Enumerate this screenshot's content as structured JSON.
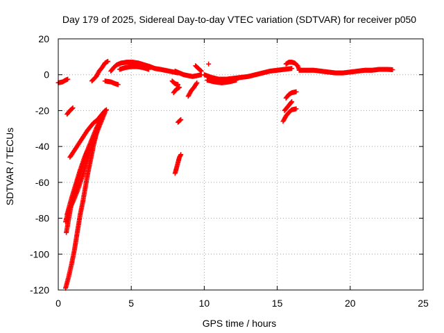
{
  "chart_data": {
    "type": "scatter",
    "title": "Day 179 of 2025, Sidereal Day-to-day VTEC variation (SDTVAR) for receiver p050",
    "xlabel": "GPS time / hours",
    "ylabel": "SDTVAR / TECUs",
    "xlim": [
      0,
      25
    ],
    "ylim": [
      -120,
      20
    ],
    "xticks": [
      0,
      5,
      10,
      15,
      20,
      25
    ],
    "yticks": [
      -120,
      -100,
      -80,
      -60,
      -40,
      -20,
      0,
      20
    ],
    "grid": true,
    "marker": "+",
    "color": "#ff0000",
    "segments": [
      {
        "name": "left-start",
        "points": [
          [
            0.0,
            -4.5
          ],
          [
            0.3,
            -4
          ],
          [
            0.5,
            -3
          ],
          [
            0.65,
            -2.5
          ]
        ]
      },
      {
        "name": "arc-upper",
        "points": [
          [
            0.6,
            -22
          ],
          [
            0.8,
            -20
          ],
          [
            1.0,
            -18.5
          ]
        ]
      },
      {
        "name": "arc-mid",
        "points": [
          [
            0.8,
            -46
          ],
          [
            1.2,
            -41
          ],
          [
            1.6,
            -36
          ],
          [
            2.0,
            -31
          ],
          [
            2.4,
            -27
          ],
          [
            2.7,
            -25
          ],
          [
            3.0,
            -22
          ],
          [
            3.3,
            -19.5
          ]
        ]
      },
      {
        "name": "arc-steep-a",
        "points": [
          [
            0.55,
            -88
          ],
          [
            0.9,
            -72
          ],
          [
            1.3,
            -60
          ],
          [
            1.7,
            -50
          ],
          [
            2.0,
            -42
          ],
          [
            2.3,
            -36
          ],
          [
            2.6,
            -30
          ],
          [
            2.9,
            -25
          ],
          [
            3.1,
            -21
          ]
        ]
      },
      {
        "name": "arc-steep-b",
        "points": [
          [
            0.5,
            -82
          ],
          [
            0.7,
            -76
          ],
          [
            1.0,
            -71
          ],
          [
            1.3,
            -65
          ],
          [
            1.6,
            -58
          ],
          [
            1.9,
            -50
          ],
          [
            2.1,
            -44
          ],
          [
            2.4,
            -38
          ],
          [
            2.7,
            -31
          ],
          [
            3.0,
            -25
          ],
          [
            3.2,
            -21
          ]
        ]
      },
      {
        "name": "arc-steep-c",
        "points": [
          [
            0.6,
            -78
          ],
          [
            0.9,
            -69
          ],
          [
            1.2,
            -61
          ],
          [
            1.5,
            -53
          ],
          [
            1.8,
            -46
          ],
          [
            1.95,
            -43
          ]
        ]
      },
      {
        "name": "arc-bottom",
        "points": [
          [
            0.5,
            -119
          ],
          [
            0.7,
            -113
          ],
          [
            0.9,
            -106
          ],
          [
            1.1,
            -98
          ],
          [
            1.3,
            -88
          ],
          [
            1.5,
            -78
          ],
          [
            1.7,
            -70
          ],
          [
            1.85,
            -63
          ],
          [
            2.0,
            -56
          ],
          [
            2.2,
            -48
          ],
          [
            2.4,
            -40
          ],
          [
            2.6,
            -33
          ],
          [
            2.8,
            -27
          ],
          [
            3.0,
            -22
          ],
          [
            3.2,
            -20
          ]
        ]
      },
      {
        "name": "arc-rise",
        "points": [
          [
            2.3,
            -3.5
          ],
          [
            2.6,
            -1
          ],
          [
            2.8,
            2
          ],
          [
            3.0,
            4
          ],
          [
            3.2,
            6.5
          ],
          [
            3.4,
            7.5
          ]
        ]
      },
      {
        "name": "dip-small",
        "points": [
          [
            3.2,
            -3.5
          ],
          [
            3.6,
            -4
          ],
          [
            3.9,
            -5
          ],
          [
            4.1,
            -5.5
          ]
        ]
      },
      {
        "name": "hump",
        "points": [
          [
            3.6,
            2
          ],
          [
            3.8,
            4
          ],
          [
            4.0,
            5.5
          ],
          [
            4.3,
            6.5
          ],
          [
            4.7,
            7
          ],
          [
            5.1,
            7
          ],
          [
            5.5,
            6.5
          ],
          [
            5.9,
            5.5
          ],
          [
            6.3,
            4.5
          ],
          [
            6.6,
            3.5
          ],
          [
            7.0,
            3
          ],
          [
            7.3,
            2.5
          ],
          [
            7.6,
            2
          ],
          [
            7.9,
            1.5
          ],
          [
            8.2,
            1
          ]
        ]
      },
      {
        "name": "hump-lower",
        "points": [
          [
            4.2,
            3
          ],
          [
            4.6,
            4
          ],
          [
            5.0,
            4.5
          ],
          [
            5.4,
            4.5
          ],
          [
            5.8,
            4
          ],
          [
            6.2,
            3
          ]
        ]
      },
      {
        "name": "mid-flat",
        "points": [
          [
            8.0,
            2
          ],
          [
            8.3,
            1
          ],
          [
            8.6,
            0
          ],
          [
            8.9,
            -0.5
          ],
          [
            9.2,
            -1
          ],
          [
            9.5,
            -0.5
          ],
          [
            9.8,
            0
          ]
        ]
      },
      {
        "name": "short-drop-a",
        "points": [
          [
            7.8,
            -3.5
          ],
          [
            8.0,
            -5
          ],
          [
            8.2,
            -5.5
          ]
        ]
      },
      {
        "name": "short-drop-b",
        "points": [
          [
            7.9,
            -10
          ],
          [
            8.1,
            -8
          ],
          [
            8.3,
            -7
          ]
        ]
      },
      {
        "name": "short-c",
        "points": [
          [
            8.2,
            -26.5
          ],
          [
            8.4,
            -25
          ]
        ]
      },
      {
        "name": "steep-mid",
        "points": [
          [
            8.0,
            -55
          ],
          [
            8.1,
            -52
          ],
          [
            8.2,
            -49
          ],
          [
            8.3,
            -46
          ],
          [
            8.4,
            -44.5
          ]
        ]
      },
      {
        "name": "rise-9",
        "points": [
          [
            8.9,
            -12
          ],
          [
            9.1,
            -9
          ],
          [
            9.3,
            -7
          ],
          [
            9.5,
            -4.5
          ]
        ]
      },
      {
        "name": "spike-9",
        "points": [
          [
            9.4,
            5
          ],
          [
            9.6,
            3.5
          ],
          [
            9.8,
            2
          ]
        ]
      },
      {
        "name": "dot-10",
        "points": [
          [
            10.3,
            6
          ]
        ]
      },
      {
        "name": "main-band",
        "points": [
          [
            10.0,
            0
          ],
          [
            10.5,
            -1.5
          ],
          [
            11.0,
            -2.5
          ],
          [
            11.5,
            -2.5
          ],
          [
            12.0,
            -2
          ],
          [
            12.5,
            -1.5
          ],
          [
            13.0,
            -1
          ],
          [
            13.5,
            0
          ],
          [
            14.0,
            1
          ],
          [
            14.5,
            2
          ],
          [
            15.0,
            2.5
          ],
          [
            15.5,
            3
          ],
          [
            16.0,
            3.5
          ]
        ]
      },
      {
        "name": "main-band-low",
        "points": [
          [
            10.2,
            -3
          ],
          [
            10.7,
            -4
          ],
          [
            11.2,
            -4.5
          ],
          [
            11.7,
            -4
          ],
          [
            12.2,
            -3
          ]
        ]
      },
      {
        "name": "block-16",
        "points": [
          [
            15.6,
            6
          ],
          [
            15.8,
            7
          ],
          [
            16.0,
            7
          ],
          [
            16.2,
            6.5
          ],
          [
            16.4,
            5
          ],
          [
            16.5,
            3
          ]
        ]
      },
      {
        "name": "drop-16a",
        "points": [
          [
            15.6,
            -13
          ],
          [
            15.8,
            -11
          ],
          [
            16.0,
            -10
          ],
          [
            16.3,
            -9.5
          ]
        ]
      },
      {
        "name": "drop-16b",
        "points": [
          [
            15.4,
            -26
          ],
          [
            15.6,
            -23
          ],
          [
            15.8,
            -21
          ],
          [
            16.0,
            -19.5
          ],
          [
            16.3,
            -19
          ]
        ]
      },
      {
        "name": "drop-16c",
        "points": [
          [
            15.5,
            -20
          ],
          [
            15.7,
            -18
          ],
          [
            15.9,
            -16
          ],
          [
            16.0,
            -15
          ]
        ]
      },
      {
        "name": "late-flat",
        "points": [
          [
            16.5,
            2.5
          ],
          [
            17.0,
            2.5
          ],
          [
            17.5,
            2.5
          ],
          [
            18.0,
            2
          ],
          [
            18.5,
            1.5
          ],
          [
            19.0,
            1
          ],
          [
            19.5,
            1
          ],
          [
            20.0,
            1.5
          ],
          [
            20.5,
            2
          ],
          [
            21.0,
            2.5
          ],
          [
            21.5,
            2.5
          ],
          [
            22.0,
            3
          ],
          [
            22.5,
            3
          ],
          [
            22.9,
            2.8
          ]
        ]
      }
    ]
  }
}
